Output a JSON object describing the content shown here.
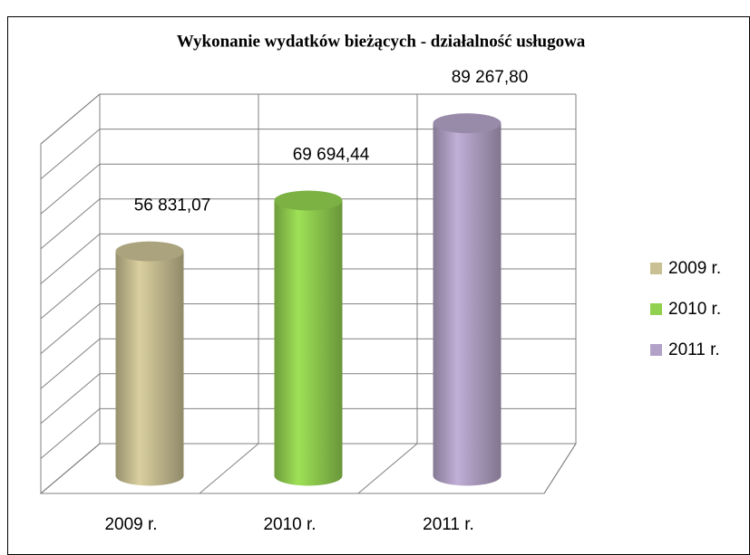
{
  "chart_data": {
    "type": "bar3d",
    "title": "Wykonanie wydatków bieżących - działalność usługowa",
    "categories": [
      "2009 r.",
      "2010 r.",
      "2011 r."
    ],
    "values": [
      56831.07,
      69694.44,
      89267.8
    ],
    "value_labels": [
      "56 831,07",
      "69 694,44",
      "89 267,80"
    ],
    "colors": [
      "#c9c093",
      "#92d050",
      "#b3a2c7"
    ],
    "ylim": [
      0,
      100000
    ],
    "yticks": [
      0,
      10000,
      20000,
      30000,
      40000,
      50000,
      60000,
      70000,
      80000,
      90000,
      100000
    ],
    "grid": true,
    "legend": "right"
  }
}
